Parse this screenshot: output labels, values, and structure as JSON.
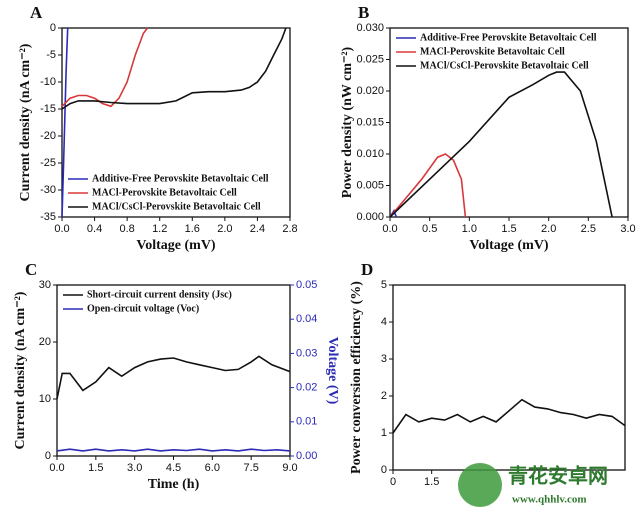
{
  "chart_data": [
    {
      "type": "line",
      "panel": "A",
      "xlabel": "Voltage (mV)",
      "ylabel": "Current density (nA cm⁻²)",
      "xlim": [
        0,
        2.8
      ],
      "xticks": [
        {
          "value": 0,
          "label": "0.0"
        },
        0.4,
        0.8,
        1.2,
        1.6,
        {
          "value": 2,
          "label": "2.0"
        },
        2.4,
        2.8
      ],
      "ylim": [
        -35,
        0
      ],
      "yticks": [
        -35,
        -30,
        -25,
        -20,
        -15,
        -10,
        -5,
        0
      ],
      "legend": "lower left",
      "series": [
        {
          "name": "Additive-Free Perovskite Betavoltaic Cell",
          "color": "#2b2bb8",
          "x": [
            0,
            0.02,
            0.05,
            0.07
          ],
          "values": [
            -35,
            -25,
            -8,
            0
          ]
        },
        {
          "name": "MACl-Perovskite Betavoltaic Cell",
          "color": "#d9383a",
          "x": [
            0,
            0.1,
            0.2,
            0.3,
            0.4,
            0.5,
            0.6,
            0.7,
            0.8,
            0.9,
            1.0,
            1.05
          ],
          "values": [
            -14.5,
            -13,
            -12.5,
            -12.5,
            -13,
            -14,
            -14.5,
            -13,
            -10,
            -5,
            -1,
            0
          ]
        },
        {
          "name": "MACl/CsCl-Perovskite Betavoltaic Cell",
          "color": "#111111",
          "x": [
            0,
            0.1,
            0.2,
            0.4,
            0.6,
            0.8,
            1.0,
            1.2,
            1.4,
            1.6,
            1.8,
            2.0,
            2.2,
            2.3,
            2.4,
            2.5,
            2.6,
            2.7,
            2.75
          ],
          "values": [
            -15,
            -14,
            -13.5,
            -13.5,
            -13.8,
            -14,
            -14,
            -14,
            -13.5,
            -12,
            -11.8,
            -11.8,
            -11.5,
            -11,
            -10,
            -8,
            -5,
            -2,
            0
          ]
        }
      ]
    },
    {
      "type": "line",
      "panel": "B",
      "xlabel": "Voltage (mV)",
      "ylabel": "Power density (nW cm⁻²)",
      "xlim": [
        0,
        3
      ],
      "xticks": [
        {
          "value": 0,
          "label": "0.0"
        },
        0.5,
        {
          "value": 1,
          "label": "1.0"
        },
        1.5,
        {
          "value": 2,
          "label": "2.0"
        },
        2.5,
        {
          "value": 3,
          "label": "3.0"
        }
      ],
      "ylim": [
        0,
        0.03
      ],
      "yticks": [
        {
          "value": 0,
          "label": "0.000"
        },
        {
          "value": 0.005,
          "label": "0.005"
        },
        {
          "value": 0.01,
          "label": "0.010"
        },
        {
          "value": 0.015,
          "label": "0.015"
        },
        {
          "value": 0.02,
          "label": "0.020"
        },
        {
          "value": 0.025,
          "label": "0.025"
        },
        {
          "value": 0.03,
          "label": "0.030"
        }
      ],
      "legend": "upper left",
      "series": [
        {
          "name": "Additive-Free Perovskite Betavoltaic Cell",
          "color": "#2b2bb8",
          "x": [
            0,
            0.05,
            0.08
          ],
          "values": [
            0,
            0.001,
            0
          ]
        },
        {
          "name": "MACl-Perovskite Betavoltaic Cell",
          "color": "#d9383a",
          "x": [
            0,
            0.2,
            0.4,
            0.6,
            0.7,
            0.8,
            0.9,
            0.95
          ],
          "values": [
            0,
            0.003,
            0.006,
            0.0095,
            0.01,
            0.009,
            0.006,
            0
          ]
        },
        {
          "name": "MACl/CsCl-Perovskite Betavoltaic Cell",
          "color": "#111111",
          "x": [
            0,
            0.5,
            1.0,
            1.5,
            1.8,
            2.0,
            2.1,
            2.2,
            2.4,
            2.6,
            2.7,
            2.8
          ],
          "values": [
            0,
            0.006,
            0.012,
            0.019,
            0.021,
            0.0225,
            0.023,
            0.023,
            0.02,
            0.012,
            0.006,
            0
          ]
        }
      ]
    },
    {
      "type": "line",
      "panel": "C",
      "xlabel": "Time (h)",
      "ylabel": "Current density (nA cm⁻²)",
      "y2label": "Voltage (V)",
      "xlim": [
        0,
        9
      ],
      "xticks": [
        {
          "value": 0,
          "label": "0.0"
        },
        1.5,
        {
          "value": 3,
          "label": "3.0"
        },
        4.5,
        {
          "value": 6,
          "label": "6.0"
        },
        7.5,
        {
          "value": 9,
          "label": "9.0"
        }
      ],
      "ylim": [
        0,
        30
      ],
      "yticks": [
        0,
        10,
        20,
        30
      ],
      "y2lim": [
        0,
        0.05
      ],
      "y2ticks": [
        {
          "value": 0,
          "label": "0.00"
        },
        0.01,
        0.02,
        0.03,
        0.04,
        0.05
      ],
      "legend": "upper left",
      "series": [
        {
          "name": "Short-circuit current density (Jsc)",
          "color": "#111111",
          "x": [
            0,
            0.2,
            0.5,
            1.0,
            1.5,
            2.0,
            2.5,
            3.0,
            3.5,
            4.0,
            4.5,
            5.0,
            5.5,
            6.0,
            6.5,
            7.0,
            7.5,
            7.8,
            8.3,
            9.0
          ],
          "values": [
            10,
            14.5,
            14.5,
            11.5,
            13,
            15.5,
            14,
            15.5,
            16.5,
            17,
            17.2,
            16.5,
            16,
            15.5,
            15,
            15.2,
            16.5,
            17.5,
            16,
            14.8
          ]
        },
        {
          "name": "Open-circuit voltage (Voc)",
          "color": "#2b2bb8",
          "axis": "y2",
          "x": [
            0,
            0.5,
            1,
            1.5,
            2,
            2.5,
            3,
            3.5,
            4,
            4.5,
            5,
            5.5,
            6,
            6.5,
            7,
            7.5,
            8,
            8.5,
            9
          ],
          "values": [
            0.0015,
            0.002,
            0.0015,
            0.002,
            0.0015,
            0.0018,
            0.0015,
            0.002,
            0.0015,
            0.0018,
            0.0016,
            0.002,
            0.0015,
            0.0018,
            0.0015,
            0.002,
            0.0016,
            0.0018,
            0.0015
          ]
        }
      ]
    },
    {
      "type": "line",
      "panel": "D",
      "ylabel": "Power conversion efficiency (%)",
      "xlim": [
        0,
        9
      ],
      "xticks": [
        {
          "value": 0,
          "label": "0"
        },
        1.5
      ],
      "ylim": [
        0,
        5
      ],
      "yticks": [
        0,
        1,
        2,
        3,
        4,
        5
      ],
      "series": [
        {
          "color": "#111111",
          "x": [
            0,
            0.5,
            1,
            1.5,
            2,
            2.5,
            3,
            3.5,
            4,
            4.5,
            5,
            5.5,
            6,
            6.5,
            7,
            7.5,
            8,
            8.5,
            9
          ],
          "values": [
            1.0,
            1.5,
            1.3,
            1.4,
            1.35,
            1.5,
            1.3,
            1.45,
            1.3,
            1.6,
            1.9,
            1.7,
            1.65,
            1.55,
            1.5,
            1.4,
            1.5,
            1.45,
            1.2
          ]
        }
      ]
    }
  ],
  "watermark": {
    "title": "青花安卓网",
    "url": "www.qhhlv.com"
  }
}
